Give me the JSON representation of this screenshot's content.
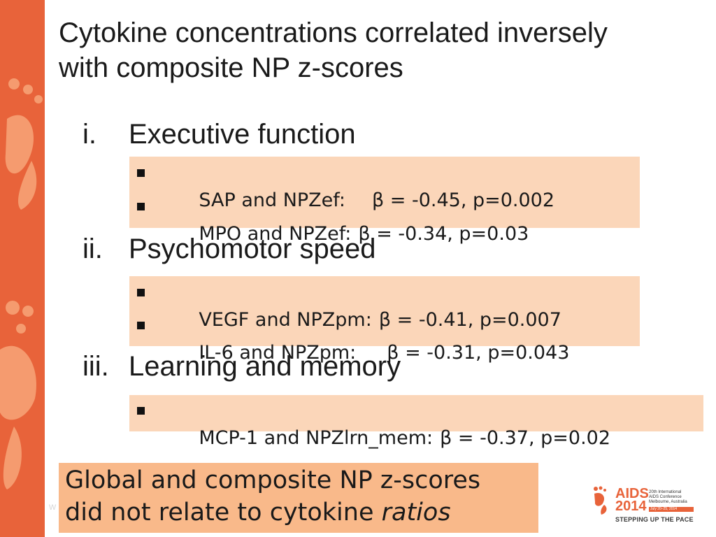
{
  "slide": {
    "title": "Cytokine concentrations correlated inversely\nwith composite NP z-scores",
    "sections": [
      {
        "numeral": "i.",
        "heading": "Executive function",
        "stats": [
          {
            "pair": "SAP and NPZef:",
            "result": "β = -0.45, p=0.002"
          },
          {
            "pair": "MPO and NPZef:",
            "result": "β = -0.34, p=0.03"
          }
        ]
      },
      {
        "numeral": "ii.",
        "heading": "Psychomotor speed",
        "stats": [
          {
            "pair": "VEGF and NPZpm:",
            "result": "β = -0.41, p=0.007"
          },
          {
            "pair": "IL-6 and NPZpm:",
            "result": "β = -0.31, p=0.043"
          }
        ]
      },
      {
        "numeral": "iii.",
        "heading": "Learning and memory",
        "stats": [
          {
            "pair": "MCP-1 and NPZlrn_mem:",
            "result": "β = -0.37, p=0.02"
          }
        ]
      }
    ],
    "conclusion": {
      "line1": "Global and composite NP z-scores",
      "line2_prefix": "did not relate to cytokine ",
      "line2_emphasis": "ratios"
    },
    "footer_fragment": "w"
  },
  "logo": {
    "name": "AIDS",
    "year": "2014",
    "conference": "20th International\nAIDS Conference\nMelbourne, Australia",
    "dates": "July 20–25, 2014",
    "tagline": "STEPPING UP THE PACE"
  },
  "colors": {
    "band": "#e8633a",
    "stat_box": "#fbd6b9",
    "conclusion_box": "#f9b98a",
    "text": "#1a1a1a"
  }
}
